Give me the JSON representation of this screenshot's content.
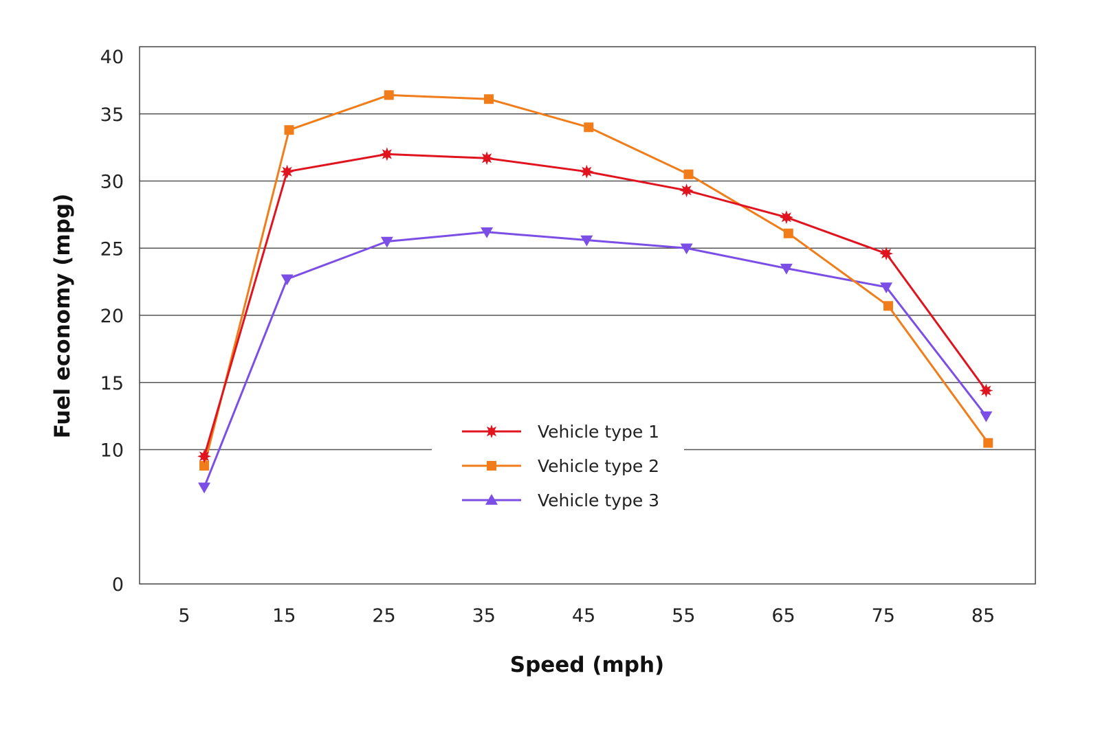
{
  "chart_data": {
    "type": "line",
    "title": "",
    "xlabel": "Speed (mph)",
    "ylabel": "Fuel economy (mpg)",
    "categories": [
      "5",
      "15",
      "25",
      "35",
      "45",
      "55",
      "65",
      "75",
      "85"
    ],
    "y_ticks": [
      "0",
      "10",
      "15",
      "20",
      "25",
      "30",
      "35",
      "40"
    ],
    "ylim": [
      0,
      40
    ],
    "grid": true,
    "legend_position": "center-bottom",
    "series": [
      {
        "name": "Vehicle type 1",
        "color": "#e0141e",
        "marker": "star",
        "x": [
          7,
          15.3,
          25.3,
          35.3,
          45.3,
          55.3,
          65.3,
          75.3,
          85.3
        ],
        "values": [
          9.5,
          30.7,
          32.0,
          31.7,
          30.7,
          29.3,
          27.3,
          24.6,
          14.4
        ]
      },
      {
        "name": "Vehicle type 2",
        "color": "#f07d1a",
        "marker": "square",
        "x": [
          7,
          15.5,
          25.5,
          35.5,
          45.5,
          55.5,
          65.5,
          75.5,
          85.5
        ],
        "values": [
          8.8,
          33.8,
          36.4,
          36.1,
          34.0,
          30.5,
          26.1,
          20.7,
          10.5
        ]
      },
      {
        "name": "Vehicle type 3",
        "color": "#7b4fe6",
        "marker": "triangle",
        "x": [
          7,
          15.3,
          25.3,
          35.3,
          45.3,
          55.3,
          65.3,
          75.3,
          85.3
        ],
        "values": [
          7.2,
          22.7,
          25.5,
          26.2,
          25.6,
          25.0,
          23.5,
          22.1,
          12.5
        ]
      }
    ]
  }
}
